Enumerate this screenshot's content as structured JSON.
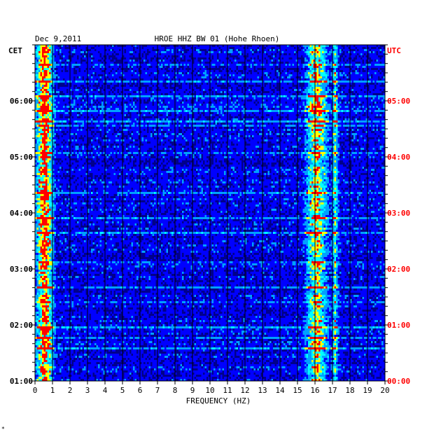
{
  "chart_data": {
    "type": "heatmap",
    "header": {
      "date": "Dec 9,2011",
      "station": "HROE HHZ BW 01 (Hohe Rhoen)"
    },
    "xlabel": "FREQUENCY (HZ)",
    "xlim": [
      0,
      20
    ],
    "x_ticks": [
      "0",
      "1",
      "2",
      "3",
      "4",
      "5",
      "6",
      "7",
      "8",
      "9",
      "10",
      "11",
      "12",
      "13",
      "14",
      "15",
      "16",
      "17",
      "18",
      "19",
      "20"
    ],
    "left_axis": {
      "label": "CET",
      "ticks": [
        "06:00",
        "05:00",
        "04:00",
        "03:00",
        "02:00",
        "01:00"
      ],
      "color": "#000000"
    },
    "right_axis": {
      "label": "UTC",
      "ticks": [
        "05:00",
        "04:00",
        "03:00",
        "02:00",
        "01:00",
        "00:00"
      ],
      "color": "#ff0000"
    },
    "time_span_hours": 6,
    "background_color": "#00008b",
    "grid": true,
    "colormap": [
      "#00008b",
      "#0000ff",
      "#00a0ff",
      "#00ffff",
      "#ffff00",
      "#ff0000"
    ],
    "energy_bands_hz": [
      {
        "from": 0.1,
        "to": 0.9,
        "peak": 0.55,
        "level": "high"
      },
      {
        "from": 15.6,
        "to": 16.6,
        "peak": 16.1,
        "level": "medium-high"
      },
      {
        "from": 17.0,
        "to": 17.3,
        "peak": 17.15,
        "level": "medium"
      }
    ]
  },
  "footer_mark": "*"
}
